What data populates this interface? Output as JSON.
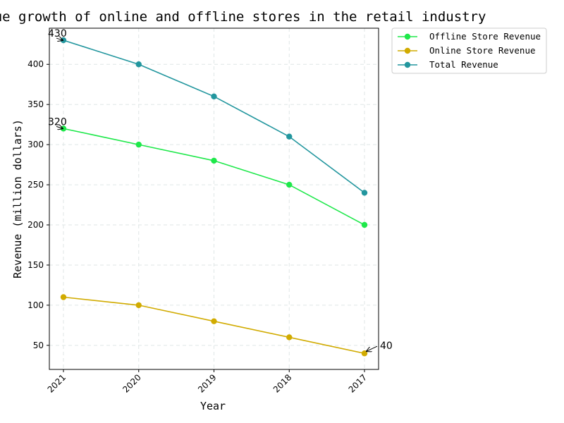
{
  "chart_data": {
    "type": "line",
    "title": "Revenue growth of online and offline stores in the retail industry",
    "xlabel": "Year",
    "ylabel": "Revenue (million dollars)",
    "categories": [
      "2021",
      "2020",
      "2019",
      "2018",
      "2017"
    ],
    "ylim": [
      20,
      445
    ],
    "yticks": [
      50,
      100,
      150,
      200,
      250,
      300,
      350,
      400
    ],
    "grid": true,
    "legend_position": "outside-top-right",
    "series": [
      {
        "name": "Offline Store Revenue",
        "values": [
          320,
          300,
          280,
          250,
          200
        ],
        "color": "#1ee84a"
      },
      {
        "name": "Online Store Revenue",
        "values": [
          110,
          100,
          80,
          60,
          40
        ],
        "color": "#d1ab00"
      },
      {
        "name": "Total Revenue",
        "values": [
          430,
          400,
          360,
          310,
          240
        ],
        "color": "#22969e"
      }
    ],
    "annotations": [
      {
        "text": "430",
        "category": "2021",
        "value": 430
      },
      {
        "text": "320",
        "category": "2021",
        "value": 320
      },
      {
        "text": "40",
        "category": "2017",
        "value": 40
      }
    ]
  }
}
